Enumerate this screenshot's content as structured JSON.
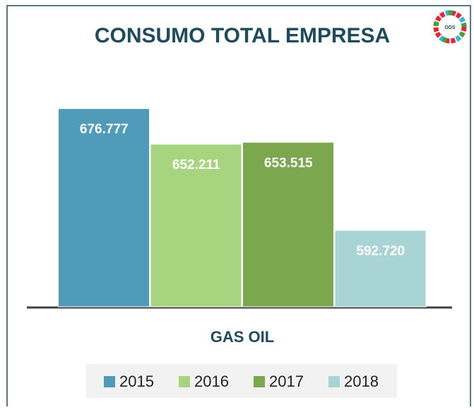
{
  "chart_data": {
    "type": "bar",
    "title": "CONSUMO TOTAL EMPRESA",
    "logo_text": "ODS",
    "categories": [
      "GAS OIL"
    ],
    "series": [
      {
        "name": "2015",
        "color": "#4f9bb9",
        "values": [
          676777
        ],
        "value_labels": [
          "676.777"
        ]
      },
      {
        "name": "2016",
        "color": "#a7d47e",
        "values": [
          652211
        ],
        "value_labels": [
          "652.211"
        ]
      },
      {
        "name": "2017",
        "color": "#7ba84f",
        "values": [
          653515
        ],
        "value_labels": [
          "653.515"
        ]
      },
      {
        "name": "2018",
        "color": "#a9d4d5",
        "values": [
          592720
        ],
        "value_labels": [
          "592.720"
        ]
      }
    ],
    "ylim": [
      540000,
      700000
    ],
    "legend": "bottom"
  }
}
